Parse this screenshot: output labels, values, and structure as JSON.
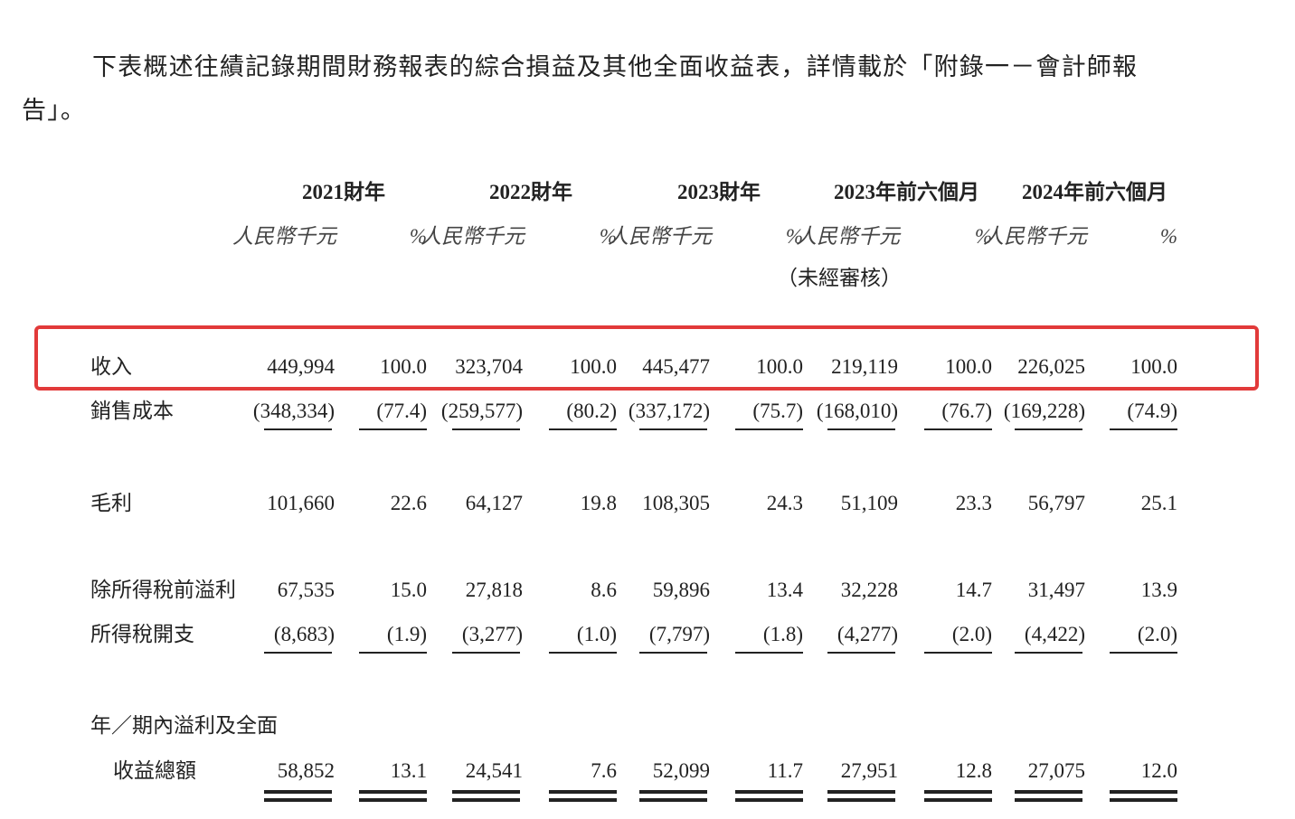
{
  "intro": "下表概述往績記錄期間財務報表的綜合損益及其他全面收益表，詳情載於「附錄一－會計師報告」。",
  "table": {
    "periods": [
      "2021財年",
      "2022財年",
      "2023財年",
      "2023年前六個月",
      "2024年前六個月"
    ],
    "unit": "人民幣千元",
    "percent": "%",
    "unaudited_note": "（未經審核）",
    "rows": [
      {
        "label": "收入",
        "values": [
          "449,994",
          "100.0",
          "323,704",
          "100.0",
          "445,477",
          "100.0",
          "219,119",
          "100.0",
          "226,025",
          "100.0"
        ]
      },
      {
        "label": "銷售成本",
        "values": [
          "(348,334)",
          "(77.4)",
          "(259,577)",
          "(80.2)",
          "(337,172)",
          "(75.7)",
          "(168,010)",
          "(76.7)",
          "(169,228)",
          "(74.9)"
        ]
      },
      {
        "label": "毛利",
        "values": [
          "101,660",
          "22.6",
          "64,127",
          "19.8",
          "108,305",
          "24.3",
          "51,109",
          "23.3",
          "56,797",
          "25.1"
        ]
      },
      {
        "label": "除所得稅前溢利",
        "values": [
          "67,535",
          "15.0",
          "27,818",
          "8.6",
          "59,896",
          "13.4",
          "32,228",
          "14.7",
          "31,497",
          "13.9"
        ]
      },
      {
        "label": "所得稅開支",
        "values": [
          "(8,683)",
          "(1.9)",
          "(3,277)",
          "(1.0)",
          "(7,797)",
          "(1.8)",
          "(4,277)",
          "(2.0)",
          "(4,422)",
          "(2.0)"
        ]
      },
      {
        "label": [
          "年／期內溢利及全面",
          "收益總額"
        ],
        "values": [
          "58,852",
          "13.1",
          "24,541",
          "7.6",
          "52,099",
          "11.7",
          "27,951",
          "12.8",
          "27,075",
          "12.0"
        ]
      }
    ]
  }
}
